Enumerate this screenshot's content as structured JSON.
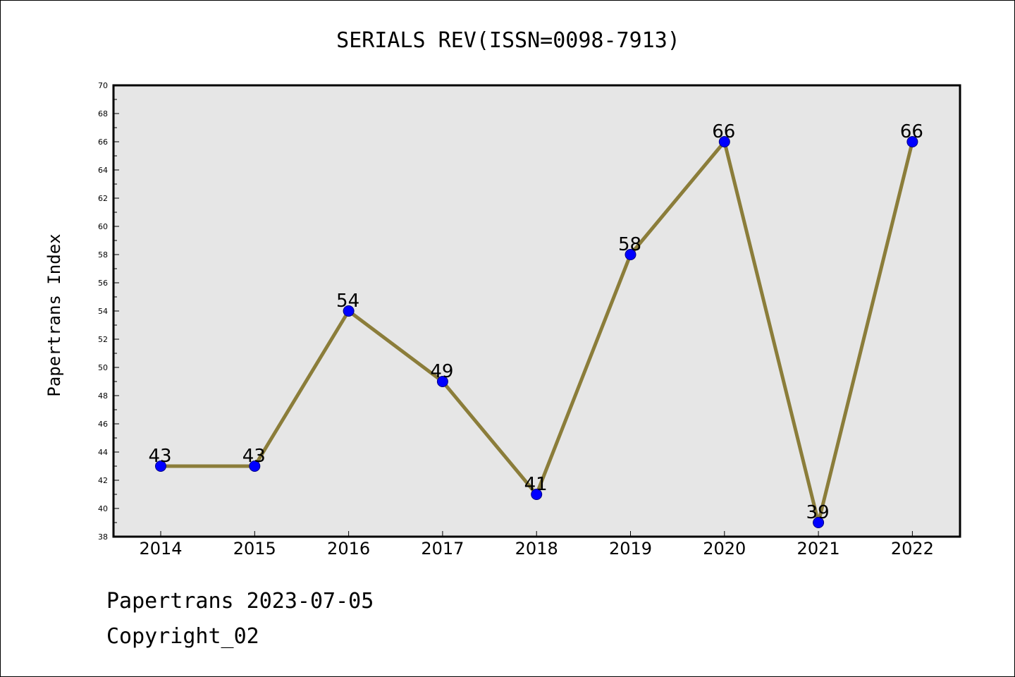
{
  "footer": {
    "line1": "Papertrans 2023-07-05",
    "line2": "Copyright_02"
  },
  "colors": {
    "plot_background": "#e6e6e6",
    "line": "#8b7d3a",
    "marker_fill": "#0000ff",
    "marker_edge": "#000080",
    "axes": "#000000"
  },
  "chart_data": {
    "type": "line",
    "title": "SERIALS REV(ISSN=0098-7913)",
    "xlabel": "",
    "ylabel": "Papertrans Index",
    "categories": [
      "2014",
      "2015",
      "2016",
      "2017",
      "2018",
      "2019",
      "2020",
      "2021",
      "2022"
    ],
    "series": [
      {
        "values": [
          43,
          43,
          54,
          49,
          41,
          58,
          66,
          39,
          66
        ]
      }
    ],
    "data_labels": [
      "43",
      "43",
      "54",
      "49",
      "41",
      "58",
      "66",
      "39",
      "66"
    ],
    "ylim": [
      38,
      70
    ],
    "yticks": [
      "38",
      "40",
      "42",
      "44",
      "46",
      "48",
      "50",
      "52",
      "54",
      "56",
      "58",
      "60",
      "62",
      "64",
      "66",
      "68",
      "70"
    ],
    "grid": false,
    "legend": "none"
  }
}
